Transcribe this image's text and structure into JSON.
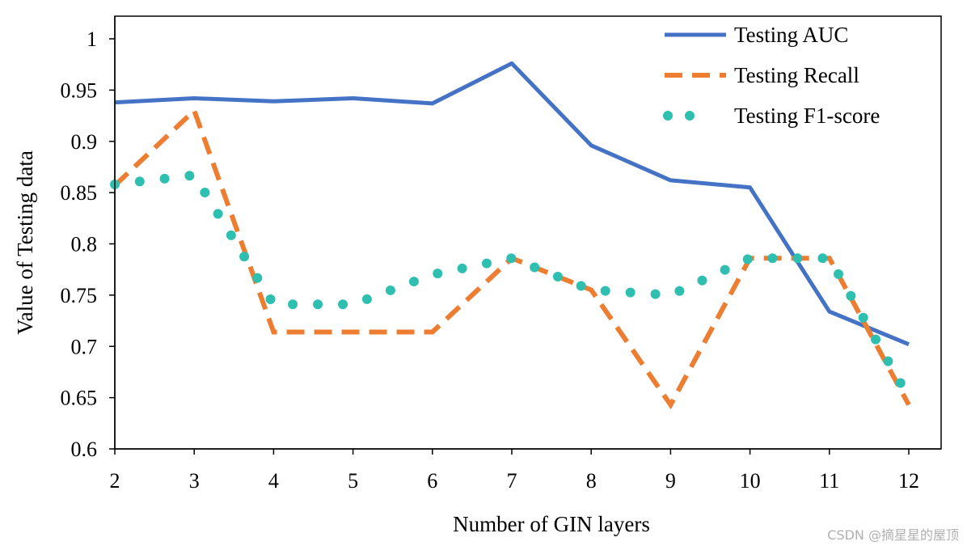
{
  "chart_data": {
    "type": "line",
    "x": [
      2,
      3,
      4,
      5,
      6,
      7,
      8,
      9,
      10,
      11,
      12
    ],
    "x_tick_labels": [
      "2",
      "3",
      "4",
      "5",
      "6",
      "7",
      "8",
      "9",
      "10",
      "11",
      "12"
    ],
    "y_tick_labels": [
      "0.6",
      "0.65",
      "0.7",
      "0.75",
      "0.8",
      "0.85",
      "0.9",
      "0.95",
      "1"
    ],
    "y_ticks": [
      0.6,
      0.65,
      0.7,
      0.75,
      0.8,
      0.85,
      0.9,
      0.95,
      1.0
    ],
    "xlim": [
      2,
      12
    ],
    "ylim": [
      0.6,
      1.0
    ],
    "xlabel": "Number of GIN layers",
    "ylabel": "Value of Testing data",
    "legend_position": "top-right",
    "grid": false,
    "series": [
      {
        "name": "Testing AUC",
        "style": "solid",
        "color": "#4472C4",
        "values": [
          0.938,
          0.942,
          0.939,
          0.942,
          0.937,
          0.976,
          0.896,
          0.862,
          0.855,
          0.734,
          0.702
        ]
      },
      {
        "name": "Testing Recall",
        "style": "dashed",
        "color": "#ED7D31",
        "values": [
          0.857,
          0.93,
          0.714,
          0.714,
          0.714,
          0.786,
          0.755,
          0.643,
          0.786,
          0.786,
          0.643
        ]
      },
      {
        "name": "Testing F1-score",
        "style": "dotted",
        "color": "#2EBFB0",
        "values": [
          0.858,
          0.867,
          0.741,
          0.741,
          0.77,
          0.786,
          0.755,
          0.75,
          0.786,
          0.786,
          0.65
        ]
      }
    ]
  },
  "watermark": "CSDN @摘星星的屋顶"
}
